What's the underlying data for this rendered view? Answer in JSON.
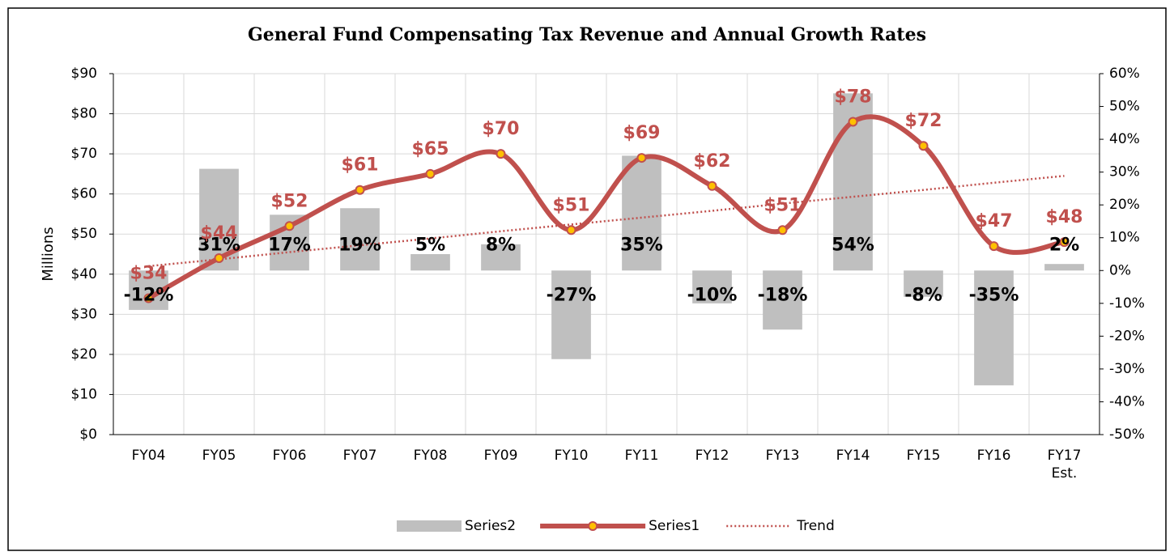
{
  "chart_data": {
    "type": "combo",
    "title": "General Fund Compensating Tax Revenue and Annual Growth Rates",
    "y_label": "Millions",
    "categories": [
      "FY04",
      "FY05",
      "FY06",
      "FY07",
      "FY08",
      "FY09",
      "FY10",
      "FY11",
      "FY12",
      "FY13",
      "FY14",
      "FY15",
      "FY16",
      "FY17 Est."
    ],
    "series": [
      {
        "name": "Series2",
        "type": "bar",
        "axis": "y2",
        "color": "#bfbfbf",
        "values": [
          -12,
          31,
          17,
          19,
          5,
          8,
          -27,
          35,
          -10,
          -18,
          54,
          -8,
          -35,
          2
        ],
        "value_labels": [
          "-12%",
          "31%",
          "17%",
          "19%",
          "5%",
          "8%",
          "-27%",
          "35%",
          "-10%",
          "-18%",
          "54%",
          "-8%",
          "-35%",
          "2%"
        ]
      },
      {
        "name": "Series1",
        "type": "line",
        "axis": "y",
        "color": "#c0504d",
        "marker_color": "#ffc000",
        "values": [
          34,
          44,
          52,
          61,
          65,
          70,
          51,
          69,
          62,
          51,
          78,
          72,
          47,
          48
        ],
        "value_labels": [
          "$34",
          "$44",
          "$52",
          "$61",
          "$65",
          "$70",
          "$51",
          "$69",
          "$62",
          "$51",
          "$78",
          "$72",
          "$47",
          "$48"
        ]
      },
      {
        "name": "Trend",
        "type": "trend",
        "axis": "y",
        "color": "#c0504d",
        "values": [
          42,
          43.7,
          45.5,
          47.2,
          48.9,
          50.7,
          52.4,
          54.1,
          55.8,
          57.6,
          59.3,
          61,
          62.8,
          64.5
        ]
      }
    ],
    "ylim": [
      0,
      90
    ],
    "yticks": [
      {
        "value": 0,
        "label": "$0"
      },
      {
        "value": 10,
        "label": "$10"
      },
      {
        "value": 20,
        "label": "$20"
      },
      {
        "value": 30,
        "label": "$30"
      },
      {
        "value": 40,
        "label": "$40"
      },
      {
        "value": 50,
        "label": "$50"
      },
      {
        "value": 60,
        "label": "$60"
      },
      {
        "value": 70,
        "label": "$70"
      },
      {
        "value": 80,
        "label": "$80"
      },
      {
        "value": 90,
        "label": "$90"
      }
    ],
    "y2lim": [
      -50,
      60
    ],
    "y2ticks": [
      {
        "value": -50,
        "label": "-50%"
      },
      {
        "value": -40,
        "label": "-40%"
      },
      {
        "value": -30,
        "label": "-30%"
      },
      {
        "value": -20,
        "label": "-20%"
      },
      {
        "value": -10,
        "label": "-10%"
      },
      {
        "value": 0,
        "label": "0%"
      },
      {
        "value": 10,
        "label": "10%"
      },
      {
        "value": 20,
        "label": "20%"
      },
      {
        "value": 30,
        "label": "30%"
      },
      {
        "value": 40,
        "label": "40%"
      },
      {
        "value": 50,
        "label": "50%"
      },
      {
        "value": 60,
        "label": "60%"
      }
    ],
    "grid": true,
    "legend": "bottom"
  }
}
